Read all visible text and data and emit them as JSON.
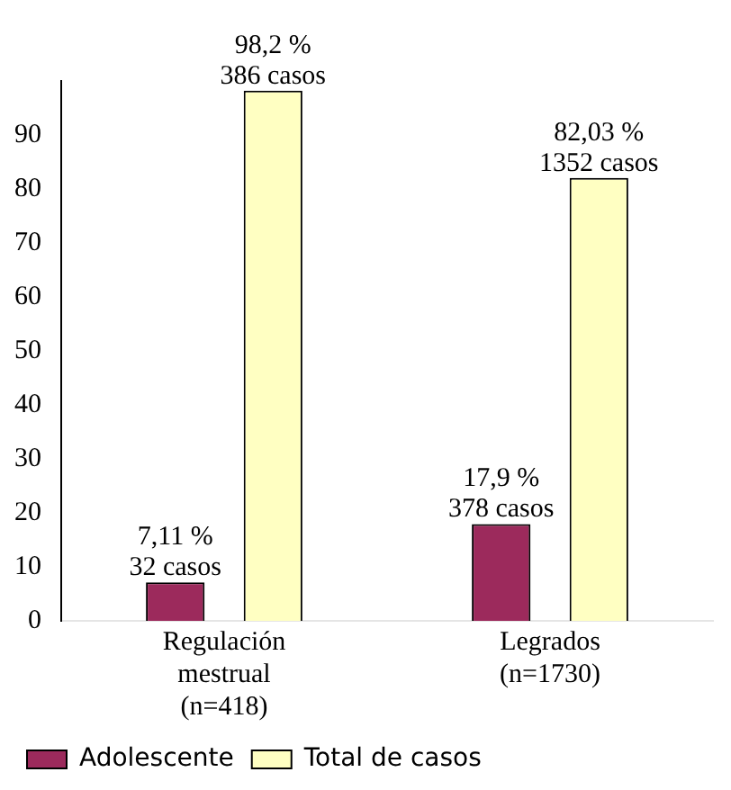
{
  "chart_data": {
    "type": "bar",
    "categories": [
      "Regulación\nmestrual\n(n=418)",
      "Legrados\n(n=1730)"
    ],
    "series": [
      {
        "name": "Adolescente",
        "color": "#9c2a5c",
        "values": [
          7.11,
          17.9
        ],
        "value_labels": [
          "7,11 %\n32 casos",
          "17,9 %\n378 casos"
        ]
      },
      {
        "name": "Total de casos",
        "color": "#ffffc2",
        "values": [
          98.2,
          82.03
        ],
        "value_labels": [
          "98,2 %\n386 casos",
          "82,03 %\n1352 casos"
        ]
      }
    ],
    "ylim": [
      0,
      100
    ],
    "yticks": [
      0,
      10,
      20,
      30,
      40,
      50,
      60,
      70,
      80,
      90
    ],
    "grid": false,
    "legend": "bottom left"
  }
}
